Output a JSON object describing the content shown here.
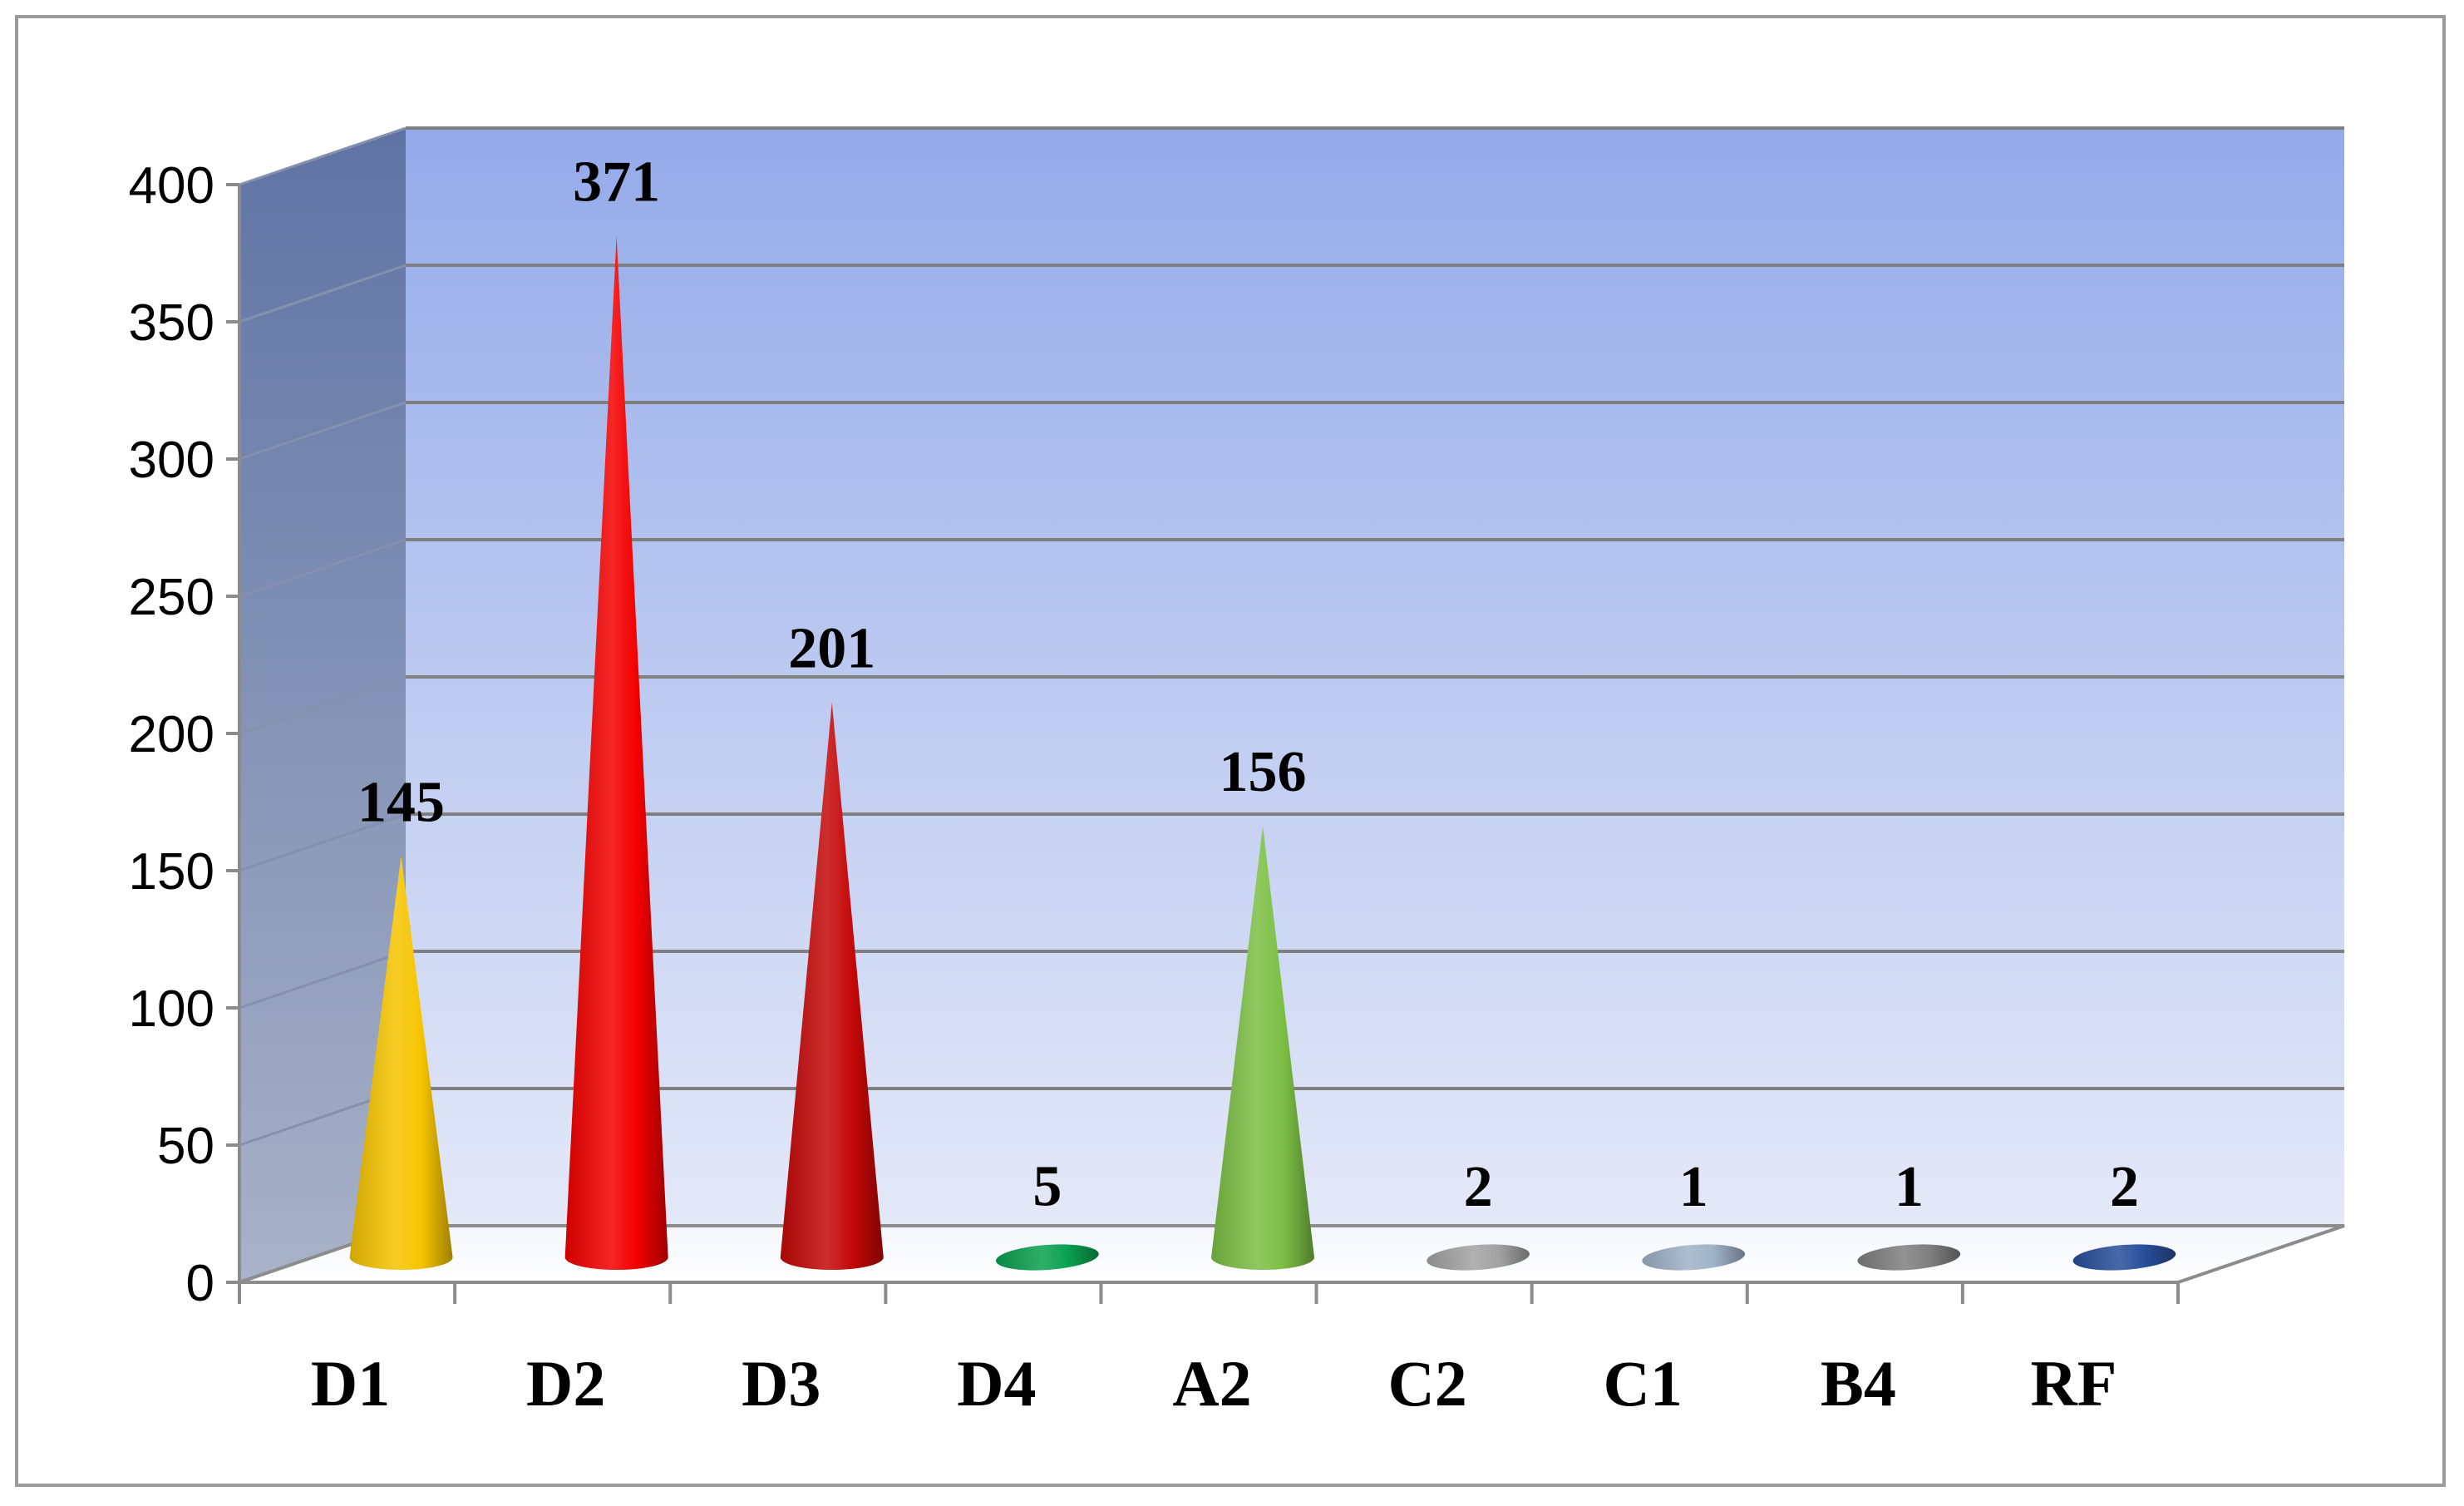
{
  "chart_data": {
    "type": "bar",
    "style": "3d-cone",
    "categories": [
      "D1",
      "D2",
      "D3",
      "D4",
      "A2",
      "C2",
      "C1",
      "B4",
      "RF"
    ],
    "values": [
      145,
      371,
      201,
      5,
      156,
      2,
      1,
      1,
      2
    ],
    "data_labels": [
      "145",
      "371",
      "201",
      "5",
      "156",
      "2",
      "1",
      "1",
      "2"
    ],
    "colors": [
      "#f5c400",
      "#f20000",
      "#c40808",
      "#0aa050",
      "#7bbf44",
      "#a3a3a3",
      "#9fb2c8",
      "#7f7f7f",
      "#284f9a"
    ],
    "ylim": [
      0,
      400
    ],
    "yticks": [
      0,
      50,
      100,
      150,
      200,
      250,
      300,
      350,
      400
    ],
    "ytick_labels": [
      "0",
      "50",
      "100",
      "150",
      "200",
      "250",
      "300",
      "350",
      "400"
    ],
    "title": "",
    "xlabel": "",
    "ylabel": "",
    "grid": true,
    "legend": "none"
  }
}
